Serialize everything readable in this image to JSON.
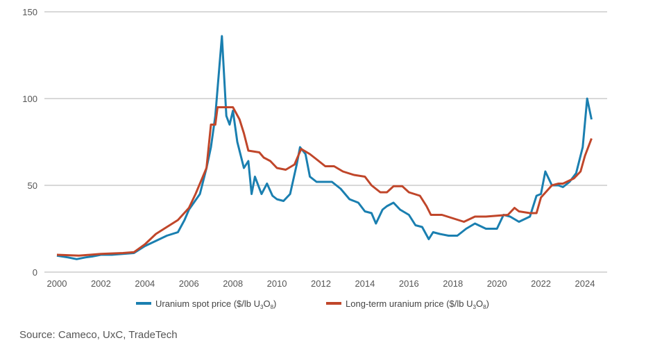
{
  "chart_data": {
    "type": "line",
    "title": "",
    "xlabel": "",
    "ylabel": "",
    "xlim": [
      2000,
      2024.4
    ],
    "ylim": [
      0,
      150
    ],
    "yticks": [
      0,
      50,
      100,
      150
    ],
    "xticks": [
      2000,
      2002,
      2004,
      2006,
      2008,
      2010,
      2012,
      2014,
      2016,
      2018,
      2020,
      2022,
      2024
    ],
    "grid": "horizontal",
    "legend_position": "bottom",
    "series": [
      {
        "name": "Uranium spot price ($/lb U3O8)",
        "legend_main": "Uranium spot price ($/lb U",
        "legend_sub1": "3",
        "legend_mid": "O",
        "legend_sub2": "8",
        "legend_end": ")",
        "color": "#1a7fb0",
        "x": [
          2000,
          2000.5,
          2000.9,
          2001.3,
          2001.6,
          2002,
          2002.5,
          2003,
          2003.5,
          2004,
          2004.5,
          2005,
          2005.5,
          2005.8,
          2006,
          2006.5,
          2006.8,
          2007,
          2007.2,
          2007.5,
          2007.7,
          2007.85,
          2008.0,
          2008.2,
          2008.5,
          2008.7,
          2008.85,
          2009,
          2009.3,
          2009.55,
          2009.8,
          2010,
          2010.3,
          2010.6,
          2010.9,
          2011.05,
          2011.3,
          2011.5,
          2011.8,
          2012,
          2012.5,
          2012.9,
          2013.3,
          2013.7,
          2014,
          2014.3,
          2014.5,
          2014.8,
          2015.0,
          2015.3,
          2015.6,
          2016,
          2016.3,
          2016.6,
          2016.9,
          2017.1,
          2017.4,
          2017.8,
          2018.2,
          2018.6,
          2019,
          2019.5,
          2020,
          2020.3,
          2020.6,
          2021,
          2021.5,
          2021.8,
          2022,
          2022.2,
          2022.5,
          2022.8,
          2023,
          2023.3,
          2023.6,
          2023.9,
          2024.1,
          2024.3
        ],
        "values": [
          9.5,
          8.5,
          7.5,
          8.5,
          9,
          10,
          10,
          10.5,
          11,
          15,
          18,
          21,
          23,
          30,
          36,
          45,
          60,
          72,
          90,
          136,
          90,
          85,
          93,
          75,
          60,
          64,
          45,
          55,
          45,
          51,
          44,
          42,
          41,
          45,
          62,
          72,
          68,
          55,
          52,
          52,
          52,
          48,
          42,
          40,
          35,
          34,
          28,
          36,
          38,
          40,
          36,
          33,
          27,
          26,
          19,
          23,
          22,
          21,
          21,
          25,
          28,
          25,
          25,
          33,
          32,
          29,
          32,
          44,
          45,
          58,
          50,
          50,
          49,
          52,
          57,
          72,
          100,
          88
        ]
      },
      {
        "name": "Long-term uranium price ($/lb U3O8)",
        "legend_main": "Long-term uranium price ($/lb U",
        "legend_sub1": "3",
        "legend_mid": "O",
        "legend_sub2": "8",
        "legend_end": ")",
        "color": "#c0462a",
        "x": [
          2000,
          2001,
          2002,
          2003,
          2003.5,
          2004,
          2004.5,
          2005,
          2005.5,
          2006,
          2006.3,
          2006.8,
          2007,
          2007.2,
          2007.3,
          2008.0,
          2008.3,
          2008.5,
          2008.7,
          2009.2,
          2009.4,
          2009.7,
          2010,
          2010.4,
          2010.8,
          2011.1,
          2011.5,
          2011.8,
          2012.2,
          2012.6,
          2013.0,
          2013.5,
          2014,
          2014.3,
          2014.7,
          2015,
          2015.3,
          2015.7,
          2016,
          2016.5,
          2016.8,
          2017,
          2017.5,
          2018,
          2018.5,
          2019,
          2019.5,
          2020,
          2020.5,
          2020.8,
          2021,
          2021.5,
          2021.8,
          2022,
          2022.5,
          2022.8,
          2023,
          2023.5,
          2023.8,
          2024,
          2024.3
        ],
        "values": [
          10,
          9.5,
          10.5,
          11,
          11.5,
          16,
          22,
          26,
          30,
          37,
          45,
          60,
          85,
          85,
          95,
          95,
          88,
          80,
          70,
          69,
          66,
          64,
          60,
          59,
          62,
          71,
          68,
          65,
          61,
          61,
          58,
          56,
          55,
          50,
          46,
          46,
          49.5,
          49.5,
          46,
          44,
          38,
          33,
          33,
          31,
          29,
          32,
          32,
          32.5,
          33,
          37,
          35,
          34,
          34,
          43,
          50,
          51,
          51,
          54,
          58,
          67,
          77
        ]
      }
    ],
    "source": "Source: Cameco, UxC, TradeTech"
  }
}
